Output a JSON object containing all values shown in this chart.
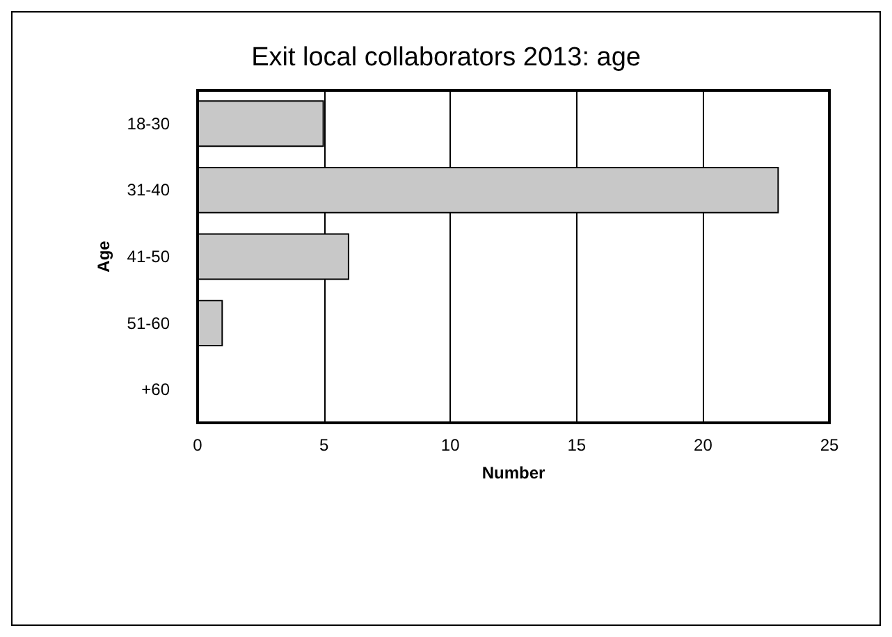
{
  "chart_data": {
    "type": "bar",
    "orientation": "horizontal",
    "title": "Exit local collaborators 2013: age",
    "xlabel": "Number",
    "ylabel": "Age",
    "categories": [
      "18-30",
      "31-40",
      "41-50",
      "51-60",
      "+60"
    ],
    "values": [
      5,
      23,
      6,
      1,
      0
    ],
    "color": "#c8c8c8",
    "xlim": [
      0,
      25
    ],
    "xticks": [
      0,
      5,
      10,
      15,
      20,
      25
    ],
    "grid": "x"
  }
}
